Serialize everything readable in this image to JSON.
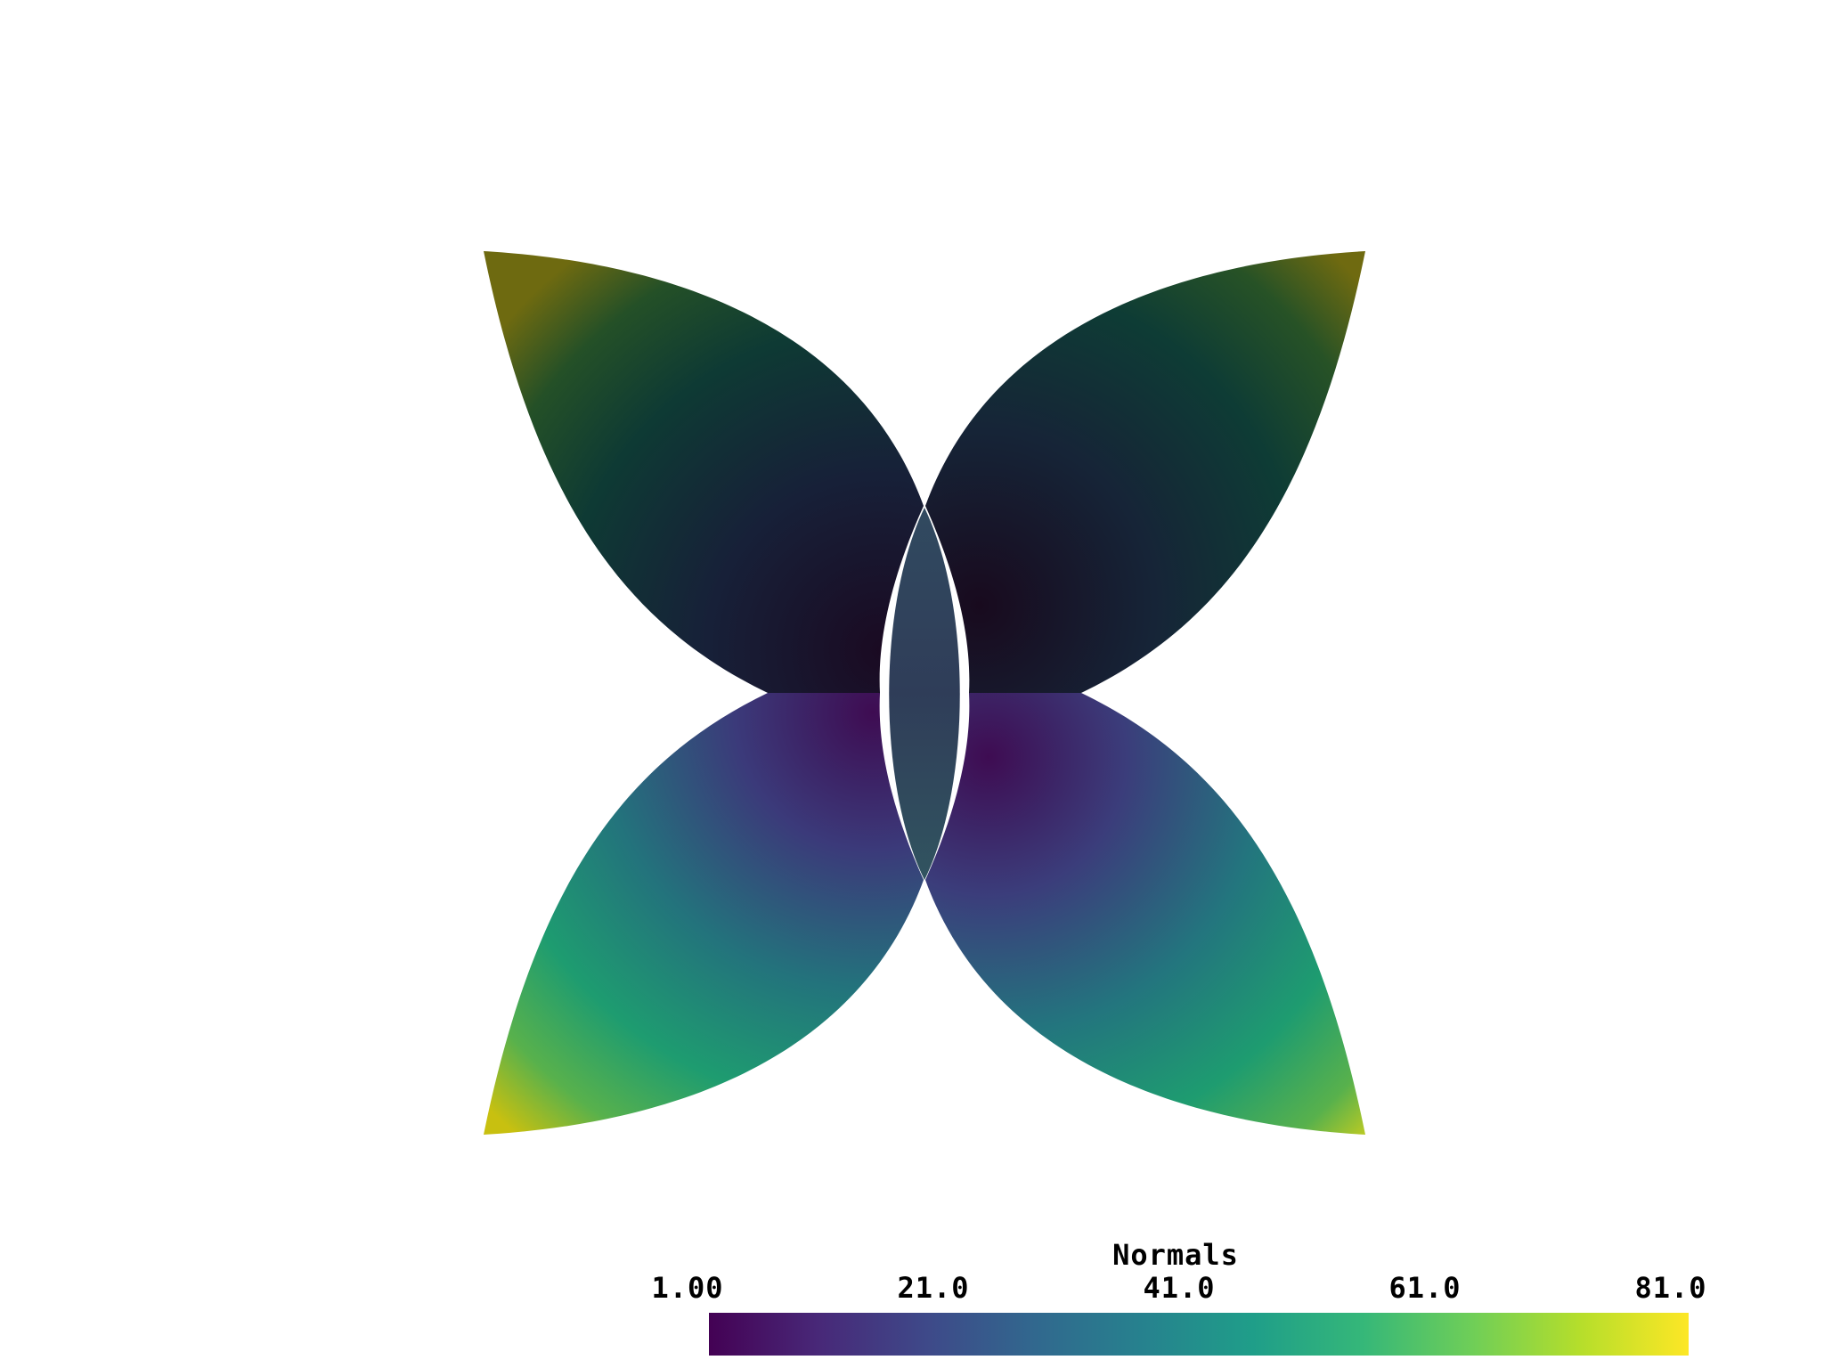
{
  "scalar_bar": {
    "title": "Normals",
    "ticks": [
      "1.00",
      "21.0",
      "41.0",
      "61.0",
      "81.0"
    ],
    "range": [
      1,
      81
    ],
    "colormap": "viridis",
    "colormap_stops": [
      "#440154",
      "#482878",
      "#3e4989",
      "#31688e",
      "#26828e",
      "#1f9e89",
      "#35b779",
      "#6ece58",
      "#b5de2b",
      "#fde725"
    ]
  },
  "scene": {
    "background": "#ffffff",
    "object": "four-petal surface colored by Normals"
  }
}
